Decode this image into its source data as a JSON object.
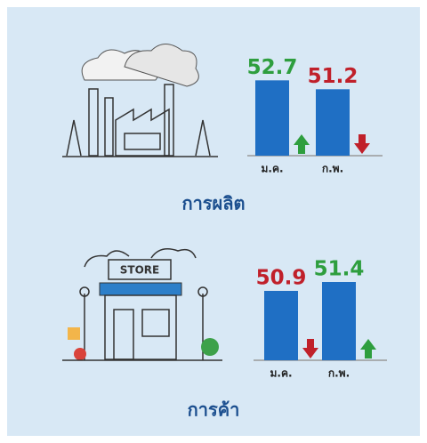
{
  "chart_data": [
    {
      "type": "bar",
      "title": "การผลิต",
      "categories": [
        "ม.ค.",
        "ก.พ."
      ],
      "values": [
        52.7,
        51.2
      ],
      "color": "#1f6fc4",
      "label_colors": [
        "#2e9e3e",
        "#c0202a"
      ],
      "arrows": [
        "up",
        "down"
      ],
      "ylim": [
        40,
        55
      ]
    },
    {
      "type": "bar",
      "title": "การค้า",
      "categories": [
        "ม.ค.",
        "ก.พ."
      ],
      "values": [
        50.9,
        51.4
      ],
      "color": "#1f6fc4",
      "label_colors": [
        "#c0202a",
        "#2e9e3e"
      ],
      "arrows": [
        "down",
        "up"
      ],
      "ylim": [
        47,
        52
      ],
      "sign": "STORE"
    }
  ]
}
